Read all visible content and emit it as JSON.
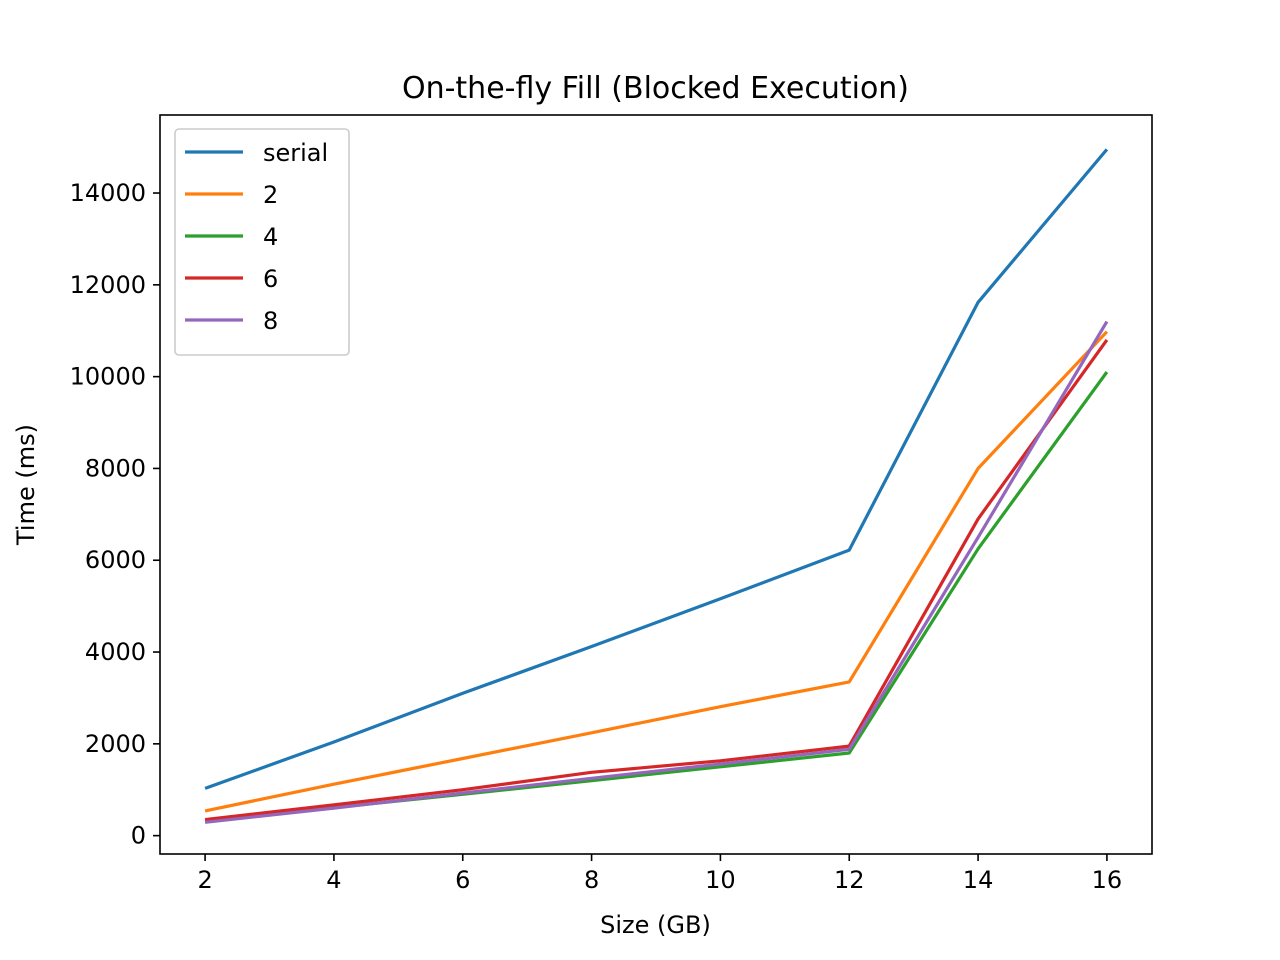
{
  "chart_data": {
    "type": "line",
    "title": "On-the-fly Fill (Blocked Execution)",
    "xlabel": "Size (GB)",
    "ylabel": "Time (ms)",
    "xlim": [
      1.3,
      16.7
    ],
    "ylim": [
      -400,
      15700
    ],
    "xticks": [
      2,
      4,
      6,
      8,
      10,
      12,
      14,
      16
    ],
    "yticks": [
      0,
      2000,
      4000,
      6000,
      8000,
      10000,
      12000,
      14000
    ],
    "grid": false,
    "legend_position": "top-left",
    "x": [
      2,
      4,
      6,
      8,
      10,
      12,
      14,
      16
    ],
    "series": [
      {
        "name": "serial",
        "color": "#1f77b4",
        "values": [
          1030,
          2040,
          3100,
          4120,
          5160,
          6220,
          11620,
          14950
        ]
      },
      {
        "name": "2",
        "color": "#ff7f0e",
        "values": [
          540,
          1120,
          1680,
          2240,
          2810,
          3350,
          8000,
          10980
        ]
      },
      {
        "name": "4",
        "color": "#2ca02c",
        "values": [
          310,
          610,
          900,
          1200,
          1500,
          1800,
          6250,
          10100
        ]
      },
      {
        "name": "6",
        "color": "#d62728",
        "values": [
          350,
          670,
          1000,
          1380,
          1630,
          1950,
          6900,
          10800
        ]
      },
      {
        "name": "8",
        "color": "#9467bd",
        "values": [
          290,
          600,
          930,
          1250,
          1560,
          1880,
          6500,
          11200
        ]
      }
    ]
  }
}
